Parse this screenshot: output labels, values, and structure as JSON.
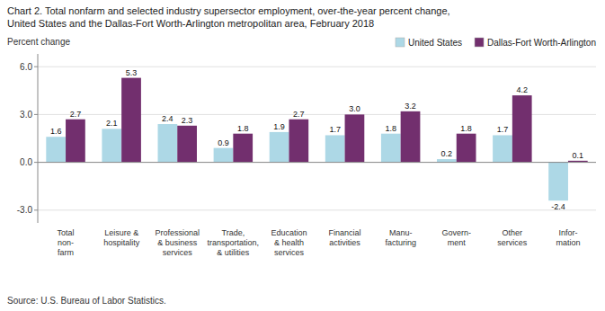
{
  "chart_data": {
    "type": "bar",
    "title": "Chart 2. Total nonfarm and selected industry supersector employment, over-the-year percent change,",
    "subtitle": "United States and the Dallas-Fort Worth-Arlington metropolitan area, February 2018",
    "ylabel": "Percent change",
    "source": "Source: U.S. Bureau of Labor Statistics.",
    "categories": [
      "Total\nnon-\nfarm",
      "Leisure &\nhospitality",
      "Professional\n& business\nservices",
      "Trade,\ntransportation,\n& utilities",
      "Education\n& health\nservices",
      "Financial\nactivities",
      "Manu-\nfacturing",
      "Govern-\nment",
      "Other\nservices",
      "Infor-\nmation"
    ],
    "series": [
      {
        "name": "United States",
        "color": "#add8e6",
        "values": [
          1.6,
          2.1,
          2.4,
          0.9,
          1.9,
          1.7,
          1.8,
          0.2,
          1.7,
          -2.4
        ]
      },
      {
        "name": "Dallas-Fort Worth-Arlington",
        "color": "#722F6E",
        "values": [
          2.7,
          5.3,
          2.3,
          1.8,
          2.7,
          3.0,
          3.2,
          1.8,
          4.2,
          0.1
        ],
        "value_labels": [
          "2.7",
          "5.3",
          "2.3",
          "1.8",
          "2.7",
          "3.0",
          "3.2",
          "1.8",
          "4.2",
          "0.1"
        ]
      }
    ],
    "ylim": [
      -3.8,
      6.8
    ],
    "yticks": [
      {
        "value": -3.0,
        "label": "-3.0"
      },
      {
        "value": 0.0,
        "label": "0.0"
      },
      {
        "value": 3.0,
        "label": "3.0"
      },
      {
        "value": 6.0,
        "label": "6.0"
      }
    ],
    "grid": true,
    "legend": "top",
    "data_labels": true
  }
}
